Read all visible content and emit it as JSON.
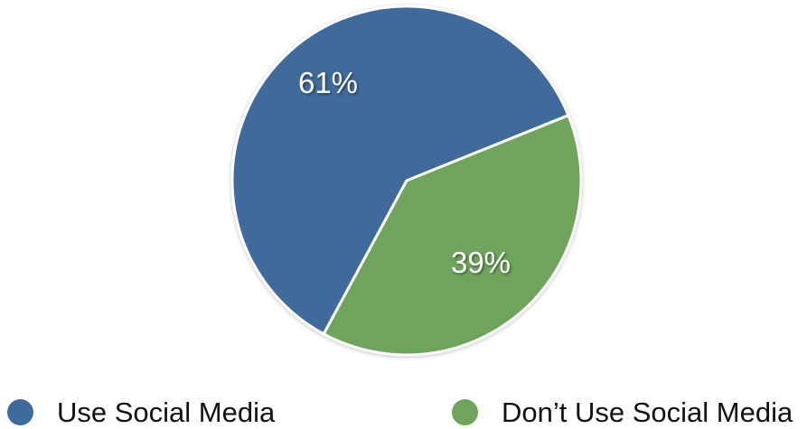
{
  "chart_data": {
    "type": "pie",
    "categories": [
      "Use Social Media",
      "Don’t Use Social Media"
    ],
    "values": [
      61,
      39
    ],
    "labels": [
      "61%",
      "39%"
    ],
    "colors": [
      "#3f6b9c",
      "#6ea45c"
    ],
    "legend": {
      "placement": "bottom",
      "items": [
        "Use Social Media",
        "Don’t Use Social Media"
      ]
    }
  }
}
